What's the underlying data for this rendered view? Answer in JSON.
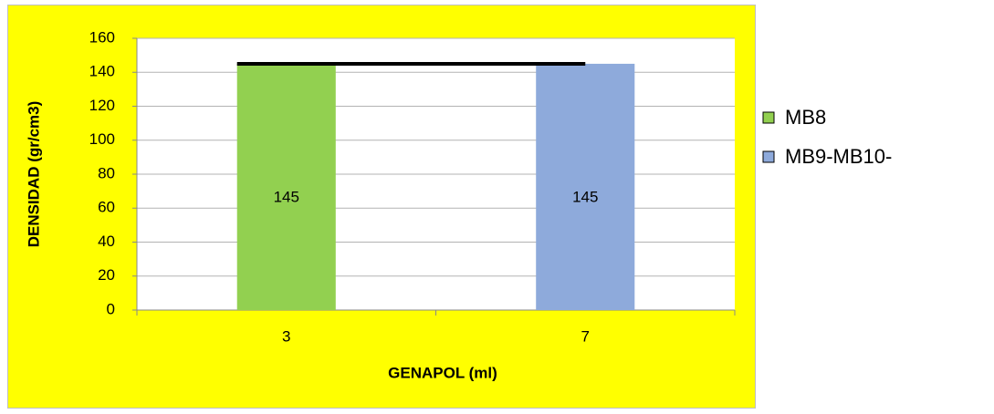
{
  "chart_data": {
    "type": "bar",
    "x_label": "GENAPOL (ml)",
    "y_label": "DENSIDAD (gr/cm3)",
    "categories": [
      "3",
      "7"
    ],
    "series": [
      {
        "name": "MB8",
        "color": "#92d050",
        "values": [
          145,
          null
        ]
      },
      {
        "name": "MB9-MB10-",
        "color": "#8eaadb",
        "values": [
          null,
          145
        ]
      },
      {
        "type": "line",
        "color": "#000000",
        "values": [
          145,
          145
        ]
      }
    ],
    "ylim": [
      0,
      160
    ],
    "yticks": [
      0,
      20,
      40,
      60,
      80,
      100,
      120,
      140,
      160
    ],
    "grid": true,
    "legend": "right",
    "background": "#ffff00"
  }
}
